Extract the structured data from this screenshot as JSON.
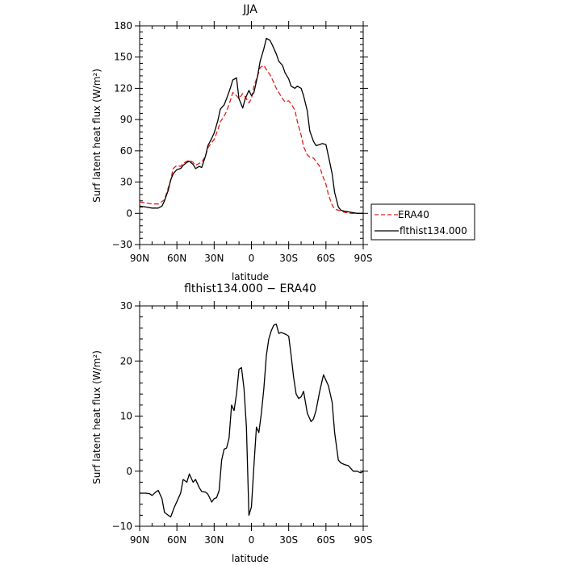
{
  "chart_data": [
    {
      "type": "line",
      "title": "JJA",
      "xlabel": "latitude",
      "ylabel": "Surf latent heat flux (W/m²)",
      "xlim": [
        90,
        -90
      ],
      "ylim": [
        -30,
        180
      ],
      "x_ticks": [
        90,
        60,
        30,
        0,
        -30,
        -60,
        -90
      ],
      "x_tick_labels": [
        "90N",
        "60N",
        "30N",
        "0",
        "30S",
        "60S",
        "90S"
      ],
      "y_ticks": [
        -30,
        0,
        30,
        60,
        90,
        120,
        150,
        180
      ],
      "y_tick_labels": [
        "−30",
        "0",
        "30",
        "60",
        "90",
        "120",
        "150",
        "180"
      ],
      "legend_position": "right",
      "series": [
        {
          "name": "ERA40",
          "color": "#e0201b",
          "dash": "dashed",
          "x": [
            90,
            85,
            80,
            75,
            70,
            65,
            63,
            60,
            57,
            55,
            52,
            50,
            47,
            45,
            42,
            40,
            37,
            35,
            32,
            30,
            27,
            25,
            22,
            20,
            17,
            15,
            12,
            10,
            7,
            5,
            2,
            0,
            -2,
            -5,
            -7,
            -10,
            -12,
            -15,
            -17,
            -20,
            -22,
            -25,
            -27,
            -30,
            -32,
            -35,
            -37,
            -40,
            -42,
            -45,
            -47,
            -50,
            -52,
            -55,
            -57,
            -60,
            -62,
            -65,
            -67,
            -70,
            -72,
            -75,
            -80,
            -85,
            -90
          ],
          "y": [
            11,
            10,
            9,
            9,
            13,
            32,
            43,
            46,
            45,
            48,
            50,
            51,
            49,
            46,
            48,
            49,
            55,
            63,
            68,
            71,
            80,
            88,
            93,
            98,
            108,
            116,
            113,
            110,
            115,
            112,
            106,
            110,
            122,
            132,
            140,
            142,
            138,
            133,
            128,
            120,
            116,
            110,
            107,
            108,
            105,
            99,
            88,
            75,
            64,
            56,
            54,
            53,
            50,
            45,
            37,
            28,
            18,
            8,
            4,
            3,
            2,
            1,
            0,
            0,
            0
          ]
        },
        {
          "name": "flthist134.000",
          "color": "#000000",
          "dash": "solid",
          "x": [
            90,
            85,
            80,
            75,
            72,
            70,
            67,
            65,
            63,
            60,
            57,
            55,
            52,
            50,
            47,
            45,
            42,
            40,
            37,
            35,
            32,
            30,
            27,
            25,
            22,
            20,
            17,
            15,
            12,
            10,
            7,
            5,
            2,
            0,
            -2,
            -5,
            -7,
            -10,
            -12,
            -15,
            -17,
            -20,
            -22,
            -25,
            -27,
            -30,
            -32,
            -35,
            -37,
            -40,
            -42,
            -45,
            -47,
            -50,
            -52,
            -55,
            -57,
            -60,
            -62,
            -65,
            -67,
            -70,
            -72,
            -75,
            -80,
            -85,
            -90
          ],
          "y": [
            7,
            6,
            5,
            5,
            7,
            12,
            22,
            32,
            38,
            42,
            43,
            46,
            49,
            50,
            47,
            43,
            45,
            44,
            55,
            65,
            72,
            77,
            89,
            100,
            104,
            110,
            120,
            128,
            130,
            110,
            101,
            110,
            118,
            113,
            116,
            132,
            146,
            158,
            168,
            166,
            161,
            153,
            146,
            142,
            135,
            129,
            122,
            120,
            122,
            120,
            113,
            98,
            79,
            69,
            65,
            66,
            67,
            66,
            55,
            38,
            20,
            6,
            3,
            2,
            1,
            0,
            0
          ]
        }
      ]
    },
    {
      "type": "line",
      "title": "flthist134.000 − ERA40",
      "xlabel": "latitude",
      "ylabel": "Surf latent heat flux (W/m²)",
      "xlim": [
        90,
        -90
      ],
      "ylim": [
        -10,
        30
      ],
      "x_ticks": [
        90,
        60,
        30,
        0,
        -30,
        -60,
        -90
      ],
      "x_tick_labels": [
        "90N",
        "60N",
        "30N",
        "0",
        "30S",
        "60S",
        "90S"
      ],
      "y_ticks": [
        -10,
        0,
        10,
        20,
        30
      ],
      "y_tick_labels": [
        "−10",
        "0",
        "10",
        "20",
        "30"
      ],
      "series": [
        {
          "color": "#000000",
          "dash": "solid",
          "x": [
            90,
            85,
            82,
            80,
            77,
            75,
            72,
            70,
            67,
            65,
            62,
            60,
            57,
            55,
            52,
            50,
            47,
            45,
            42,
            40,
            37,
            35,
            32,
            30,
            28,
            26,
            24,
            22,
            20,
            18,
            16,
            14,
            12,
            10,
            8,
            6,
            4,
            2,
            0,
            -2,
            -4,
            -6,
            -8,
            -10,
            -12,
            -14,
            -16,
            -18,
            -20,
            -22,
            -24,
            -26,
            -28,
            -30,
            -32,
            -34,
            -36,
            -38,
            -40,
            -42,
            -45,
            -48,
            -50,
            -52,
            -55,
            -58,
            -60,
            -62,
            -65,
            -67,
            -70,
            -72,
            -75,
            -78,
            -80,
            -82,
            -85,
            -88,
            -90
          ],
          "y": [
            -4,
            -4,
            -4.1,
            -4.4,
            -3.8,
            -3.5,
            -5,
            -7.5,
            -8,
            -8.3,
            -6.5,
            -5.5,
            -4,
            -1.5,
            -2,
            -0.5,
            -2,
            -1.5,
            -3,
            -3.7,
            -3.8,
            -4.2,
            -5.6,
            -5,
            -4.8,
            -3.5,
            2,
            4,
            4.2,
            6,
            12,
            11,
            14,
            18.5,
            18.8,
            15,
            8,
            -8,
            -6.5,
            1,
            8,
            7,
            10.5,
            15,
            21,
            24,
            25.5,
            26.5,
            26.7,
            25,
            25.2,
            25,
            24.8,
            24.5,
            21,
            17,
            14,
            13.2,
            13.5,
            14.5,
            10.5,
            9,
            9.5,
            11,
            14.5,
            17.5,
            16.5,
            15.5,
            12.5,
            7,
            2,
            1.5,
            1.2,
            1,
            0.5,
            0,
            0,
            -0.3,
            0
          ]
        }
      ]
    }
  ]
}
